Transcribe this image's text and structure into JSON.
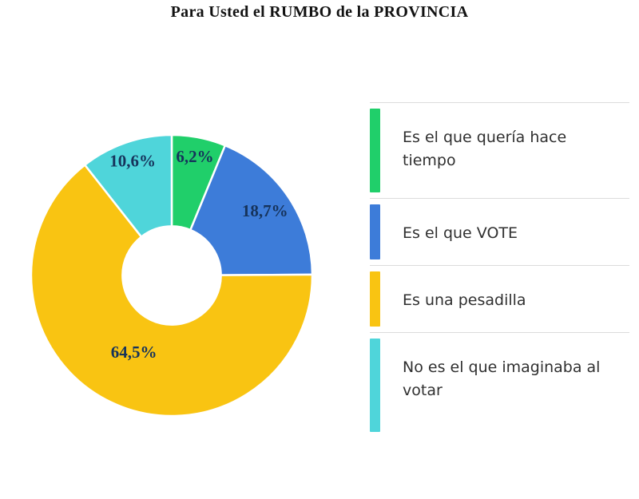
{
  "title": "Para Usted el RUMBO de la PROVINCIA",
  "chart_data": {
    "type": "pie",
    "subtype": "donut",
    "title": "Para Usted el RUMBO de la PROVINCIA",
    "direction": "clockwise",
    "start_angle_deg": 0,
    "inner_radius_ratio": 0.35,
    "legend_position": "right",
    "grid": false,
    "value_label_color": "#16335b",
    "segments": [
      {
        "label": "Es el que quería hace tiempo",
        "value": 6.2,
        "display": "6,2%",
        "color": "#20cf6a"
      },
      {
        "label": "Es el que VOTE",
        "value": 18.7,
        "display": "18,7%",
        "color": "#3d7cd9"
      },
      {
        "label": "Es una pesadilla",
        "value": 64.5,
        "display": "64,5%",
        "color": "#f9c412"
      },
      {
        "label": "No es el que imaginaba al votar",
        "value": 10.6,
        "display": "10,6%",
        "color": "#4fd5da"
      }
    ]
  }
}
